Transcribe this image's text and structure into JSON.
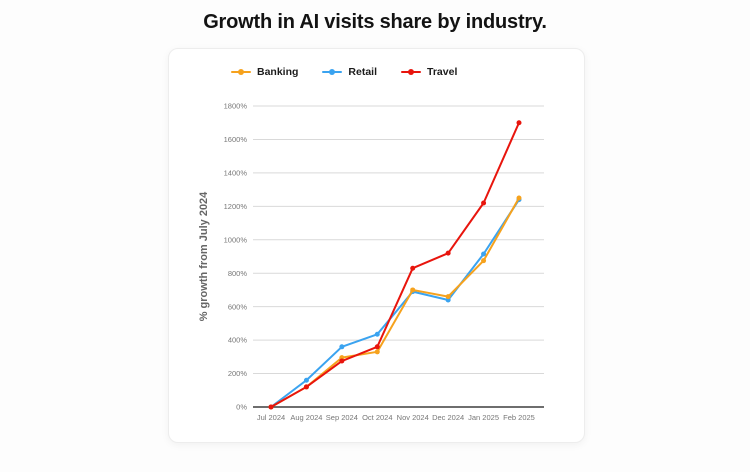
{
  "page": {
    "title": "Growth in AI visits share by industry."
  },
  "chart_data": {
    "type": "line",
    "title": "Growth in AI visits share by industry.",
    "xlabel": "",
    "ylabel": "% growth from July 2024",
    "categories": [
      "Jul 2024",
      "Aug 2024",
      "Sep 2024",
      "Oct 2024",
      "Nov 2024",
      "Dec 2024",
      "Jan 2025",
      "Feb 2025"
    ],
    "series": [
      {
        "name": "Banking",
        "color": "#F6A21D",
        "values": [
          0,
          120,
          295,
          330,
          700,
          660,
          875,
          1250
        ]
      },
      {
        "name": "Retail",
        "color": "#3AA3F0",
        "values": [
          0,
          160,
          360,
          435,
          690,
          640,
          915,
          1240
        ]
      },
      {
        "name": "Travel",
        "color": "#E8150D",
        "values": [
          0,
          120,
          275,
          360,
          830,
          920,
          1220,
          1700
        ]
      }
    ],
    "ylim": [
      0,
      1800
    ],
    "ytick_step": 200,
    "ytick_suffix": "%",
    "ytick_labels": [
      "0%",
      "200%",
      "400%",
      "600%",
      "800%",
      "1000%",
      "1200%",
      "1400%",
      "1600%",
      "1800%"
    ],
    "grid": true,
    "legend_position": "top-left",
    "draw_order": [
      "Retail",
      "Banking",
      "Travel"
    ],
    "colors": {
      "grid": "#d9d9d9",
      "axis": "#3f3f3f",
      "tick_text": "#777777"
    }
  }
}
